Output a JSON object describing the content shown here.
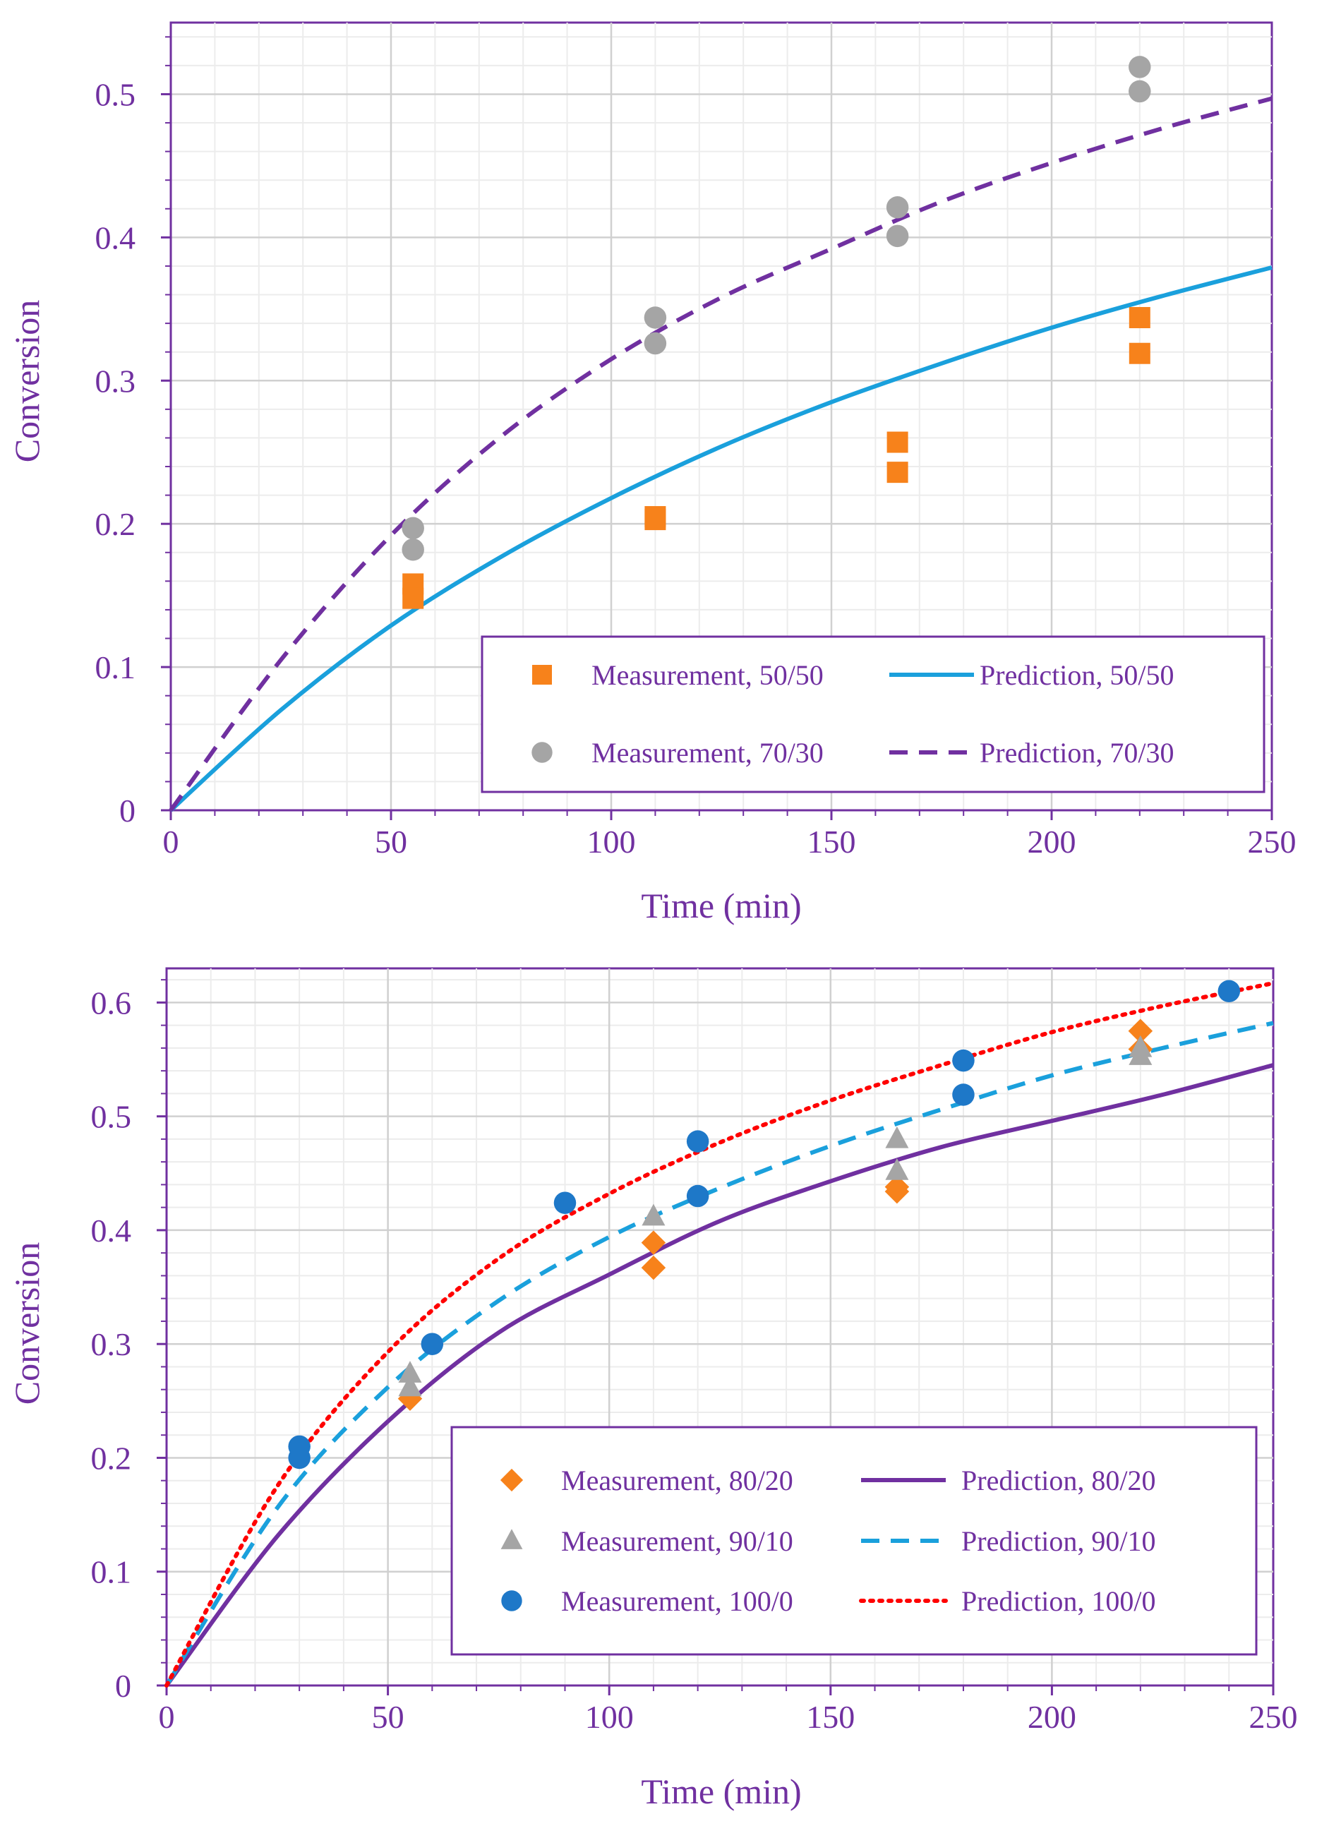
{
  "colors": {
    "frame": "#7030a0",
    "text": "#7030a0",
    "grid_major": "#d0d0d0",
    "grid_minor": "#ececec",
    "orange": "#f7821b",
    "gray": "#a5a5a5",
    "blue": "#1e78c8",
    "cyan": "#1aa0dc",
    "purple": "#7030a0",
    "red": "#ff0000"
  },
  "chart_data": [
    {
      "type": "scatter",
      "title": "",
      "xlabel": "Time (min)",
      "ylabel": "Conversion",
      "xlim": [
        0,
        250
      ],
      "ylim": [
        0,
        0.55
      ],
      "xticks": [
        0,
        50,
        100,
        150,
        200,
        250
      ],
      "yticks": [
        0,
        0.1,
        0.2,
        0.3,
        0.4,
        0.5
      ],
      "xtick_labels": [
        "0",
        "50",
        "100",
        "150",
        "200",
        "250"
      ],
      "ytick_labels": [
        "0",
        "0.1",
        "0.2",
        "0.3",
        "0.4",
        "0.5"
      ],
      "grid": true,
      "legend_position": "bottom-right",
      "series": [
        {
          "name": "Measurement, 50/50",
          "kind": "markers",
          "marker": "square",
          "color": "#f7821b",
          "x": [
            55,
            55,
            110,
            110,
            165,
            165,
            220,
            220
          ],
          "y": [
            0.158,
            0.148,
            0.205,
            0.203,
            0.257,
            0.236,
            0.344,
            0.319
          ]
        },
        {
          "name": "Prediction, 50/50",
          "kind": "line",
          "dash": "solid",
          "color": "#1aa0dc",
          "x": [
            0,
            25,
            50,
            75,
            100,
            125,
            150,
            175,
            200,
            225,
            250
          ],
          "y": [
            0,
            0.07,
            0.129,
            0.177,
            0.218,
            0.254,
            0.285,
            0.312,
            0.337,
            0.359,
            0.379
          ]
        },
        {
          "name": "Measurement, 70/30",
          "kind": "markers",
          "marker": "circle",
          "color": "#a5a5a5",
          "x": [
            55,
            55,
            110,
            110,
            165,
            165,
            220,
            220
          ],
          "y": [
            0.197,
            0.182,
            0.344,
            0.326,
            0.421,
            0.401,
            0.519,
            0.502
          ]
        },
        {
          "name": "Prediction, 70/30",
          "kind": "line",
          "dash": "dashed",
          "color": "#7030a0",
          "x": [
            0,
            25,
            50,
            75,
            100,
            125,
            150,
            175,
            200,
            225,
            250
          ],
          "y": [
            0,
            0.105,
            0.192,
            0.261,
            0.315,
            0.358,
            0.392,
            0.425,
            0.452,
            0.476,
            0.497
          ]
        }
      ]
    },
    {
      "type": "scatter",
      "title": "",
      "xlabel": "Time (min)",
      "ylabel": "Conversion",
      "xlim": [
        0,
        250
      ],
      "ylim": [
        0,
        0.63
      ],
      "xticks": [
        0,
        50,
        100,
        150,
        200,
        250
      ],
      "yticks": [
        0,
        0.1,
        0.2,
        0.3,
        0.4,
        0.5,
        0.6
      ],
      "xtick_labels": [
        "0",
        "50",
        "100",
        "150",
        "200",
        "250"
      ],
      "ytick_labels": [
        "0",
        "0.1",
        "0.2",
        "0.3",
        "0.4",
        "0.5",
        "0.6"
      ],
      "grid": true,
      "legend_position": "bottom-right",
      "series": [
        {
          "name": "Measurement, 80/20",
          "kind": "markers",
          "marker": "diamond",
          "color": "#f7821b",
          "x": [
            55,
            110,
            110,
            165,
            165,
            220,
            220
          ],
          "y": [
            0.252,
            0.389,
            0.367,
            0.438,
            0.434,
            0.575,
            0.559
          ]
        },
        {
          "name": "Prediction, 80/20",
          "kind": "line",
          "dash": "solid",
          "color": "#7030a0",
          "x": [
            0,
            25,
            50,
            75,
            100,
            125,
            150,
            175,
            200,
            225,
            250
          ],
          "y": [
            0,
            0.131,
            0.232,
            0.31,
            0.361,
            0.408,
            0.443,
            0.473,
            0.496,
            0.519,
            0.545
          ]
        },
        {
          "name": "Measurement, 90/10",
          "kind": "markers",
          "marker": "triangle",
          "color": "#a5a5a5",
          "x": [
            55,
            55,
            110,
            165,
            165,
            220,
            220
          ],
          "y": [
            0.274,
            0.262,
            0.412,
            0.48,
            0.452,
            0.56,
            0.553
          ]
        },
        {
          "name": "Prediction, 90/10",
          "kind": "line",
          "dash": "dashed",
          "color": "#1aa0dc",
          "x": [
            0,
            25,
            50,
            75,
            100,
            125,
            150,
            175,
            200,
            225,
            250
          ],
          "y": [
            0,
            0.156,
            0.262,
            0.338,
            0.394,
            0.437,
            0.474,
            0.506,
            0.536,
            0.56,
            0.582
          ]
        },
        {
          "name": "Measurement, 100/0",
          "kind": "markers",
          "marker": "circle",
          "color": "#1e78c8",
          "x": [
            30,
            30,
            60,
            90,
            120,
            120,
            180,
            180,
            240
          ],
          "y": [
            0.21,
            0.2,
            0.3,
            0.424,
            0.478,
            0.43,
            0.549,
            0.519,
            0.61
          ]
        },
        {
          "name": "Prediction, 100/0",
          "kind": "line",
          "dash": "dotted",
          "color": "#ff0000",
          "x": [
            0,
            25,
            50,
            75,
            100,
            125,
            150,
            175,
            200,
            225,
            250
          ],
          "y": [
            0,
            0.175,
            0.293,
            0.375,
            0.432,
            0.477,
            0.514,
            0.545,
            0.574,
            0.597,
            0.617
          ]
        }
      ]
    }
  ]
}
